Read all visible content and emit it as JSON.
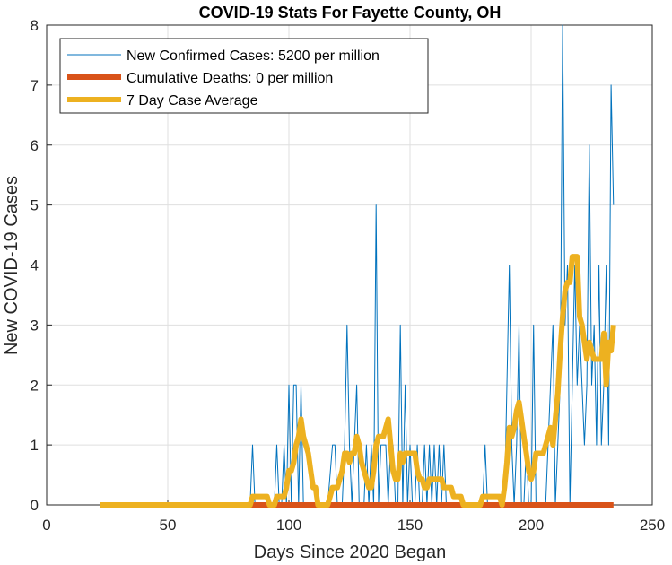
{
  "chart_data": {
    "type": "line",
    "title": "COVID-19 Stats For Fayette County, OH",
    "xlabel": "Days Since 2020 Began",
    "ylabel": "New COVID-19 Cases",
    "xlim": [
      0,
      250
    ],
    "ylim": [
      0,
      8
    ],
    "x_ticks": [
      "0",
      "50",
      "100",
      "150",
      "200",
      "250"
    ],
    "y_ticks": [
      "0",
      "1",
      "2",
      "3",
      "4",
      "5",
      "6",
      "7",
      "8"
    ],
    "grid": true,
    "legend_position": "top-left",
    "series": [
      {
        "name": "New Confirmed Cases: 5200 per million",
        "color": "#0072BD",
        "style": "thin",
        "points": [
          [
            22,
            0
          ],
          [
            84,
            0
          ],
          [
            85,
            1
          ],
          [
            86,
            0
          ],
          [
            94,
            0
          ],
          [
            95,
            1
          ],
          [
            96,
            0
          ],
          [
            97,
            0
          ],
          [
            98,
            1
          ],
          [
            99,
            0
          ],
          [
            100,
            2
          ],
          [
            101,
            0
          ],
          [
            102,
            2
          ],
          [
            103,
            2
          ],
          [
            104,
            0
          ],
          [
            105,
            2
          ],
          [
            106,
            0
          ],
          [
            115,
            0
          ],
          [
            116,
            0
          ],
          [
            118,
            1
          ],
          [
            119,
            1
          ],
          [
            120,
            0
          ],
          [
            122,
            0
          ],
          [
            123,
            1
          ],
          [
            124,
            3
          ],
          [
            125,
            1
          ],
          [
            126,
            0
          ],
          [
            127,
            1
          ],
          [
            128,
            2
          ],
          [
            129,
            0
          ],
          [
            131,
            0
          ],
          [
            132,
            1
          ],
          [
            133,
            0
          ],
          [
            134,
            1
          ],
          [
            135,
            0
          ],
          [
            136,
            5
          ],
          [
            137,
            0
          ],
          [
            138,
            1
          ],
          [
            139,
            1
          ],
          [
            140,
            1
          ],
          [
            141,
            0
          ],
          [
            142,
            1
          ],
          [
            143,
            1
          ],
          [
            144,
            0
          ],
          [
            145,
            0
          ],
          [
            146,
            3
          ],
          [
            147,
            0
          ],
          [
            148,
            2
          ],
          [
            149,
            0
          ],
          [
            150,
            1
          ],
          [
            151,
            0
          ],
          [
            152,
            0
          ],
          [
            153,
            1
          ],
          [
            154,
            0
          ],
          [
            155,
            0
          ],
          [
            156,
            1
          ],
          [
            157,
            0
          ],
          [
            158,
            1
          ],
          [
            159,
            0
          ],
          [
            160,
            1
          ],
          [
            161,
            0
          ],
          [
            162,
            1
          ],
          [
            163,
            0
          ],
          [
            164,
            1
          ],
          [
            165,
            0
          ],
          [
            180,
            0
          ],
          [
            181,
            1
          ],
          [
            182,
            0
          ],
          [
            189,
            0
          ],
          [
            190,
            2
          ],
          [
            191,
            4
          ],
          [
            192,
            1
          ],
          [
            193,
            0
          ],
          [
            194,
            1
          ],
          [
            195,
            3
          ],
          [
            196,
            0
          ],
          [
            197,
            0
          ],
          [
            198,
            1
          ],
          [
            199,
            0
          ],
          [
            200,
            0
          ],
          [
            201,
            3
          ],
          [
            202,
            0
          ],
          [
            206,
            0
          ],
          [
            207,
            1
          ],
          [
            208,
            2
          ],
          [
            209,
            3
          ],
          [
            210,
            0
          ],
          [
            211,
            1
          ],
          [
            212,
            2
          ],
          [
            213,
            8
          ],
          [
            214,
            3
          ],
          [
            215,
            4
          ],
          [
            216,
            0
          ],
          [
            217,
            2
          ],
          [
            218,
            4
          ],
          [
            219,
            2
          ],
          [
            220,
            3
          ],
          [
            221,
            2
          ],
          [
            222,
            1
          ],
          [
            223,
            2
          ],
          [
            224,
            6
          ],
          [
            225,
            2
          ],
          [
            226,
            3
          ],
          [
            227,
            1
          ],
          [
            228,
            4
          ],
          [
            229,
            1
          ],
          [
            230,
            2
          ],
          [
            231,
            4
          ],
          [
            232,
            1
          ],
          [
            233,
            7
          ],
          [
            234,
            5
          ]
        ]
      },
      {
        "name": "Cumulative Deaths: 0 per million",
        "color": "#D95319",
        "style": "thick",
        "points": [
          [
            22,
            0
          ],
          [
            234,
            0
          ]
        ]
      },
      {
        "name": "7 Day Case Average",
        "color": "#EDB120",
        "style": "thick",
        "points": [
          [
            22,
            0
          ],
          [
            84,
            0
          ],
          [
            85,
            0.14
          ],
          [
            91,
            0.14
          ],
          [
            92,
            0
          ],
          [
            94,
            0
          ],
          [
            95,
            0.14
          ],
          [
            98,
            0.14
          ],
          [
            99,
            0.29
          ],
          [
            100,
            0.57
          ],
          [
            101,
            0.57
          ],
          [
            102,
            0.71
          ],
          [
            103,
            1.0
          ],
          [
            104,
            1.14
          ],
          [
            105,
            1.43
          ],
          [
            106,
            1.14
          ],
          [
            107,
            1.0
          ],
          [
            108,
            0.86
          ],
          [
            109,
            0.57
          ],
          [
            110,
            0.29
          ],
          [
            111,
            0.29
          ],
          [
            112,
            0
          ],
          [
            116,
            0
          ],
          [
            117,
            0.14
          ],
          [
            118,
            0.29
          ],
          [
            119,
            0.29
          ],
          [
            120,
            0.29
          ],
          [
            121,
            0.43
          ],
          [
            122,
            0.57
          ],
          [
            123,
            0.86
          ],
          [
            124,
            0.86
          ],
          [
            125,
            0.71
          ],
          [
            126,
            0.86
          ],
          [
            127,
            0.86
          ],
          [
            128,
            1.14
          ],
          [
            129,
            1.0
          ],
          [
            130,
            0.71
          ],
          [
            131,
            0.57
          ],
          [
            132,
            0.43
          ],
          [
            133,
            0.29
          ],
          [
            134,
            0.29
          ],
          [
            135,
            0.57
          ],
          [
            136,
            1.0
          ],
          [
            137,
            1.14
          ],
          [
            138,
            1.14
          ],
          [
            139,
            1.14
          ],
          [
            140,
            1.29
          ],
          [
            141,
            1.43
          ],
          [
            142,
            1.0
          ],
          [
            143,
            0.57
          ],
          [
            144,
            0.43
          ],
          [
            145,
            0.43
          ],
          [
            146,
            0.86
          ],
          [
            147,
            0.71
          ],
          [
            148,
            0.86
          ],
          [
            149,
            0.86
          ],
          [
            150,
            0.86
          ],
          [
            151,
            0.86
          ],
          [
            152,
            0.86
          ],
          [
            153,
            0.57
          ],
          [
            154,
            0.43
          ],
          [
            155,
            0.43
          ],
          [
            156,
            0.29
          ],
          [
            157,
            0.29
          ],
          [
            158,
            0.43
          ],
          [
            159,
            0.43
          ],
          [
            160,
            0.43
          ],
          [
            161,
            0.43
          ],
          [
            162,
            0.43
          ],
          [
            163,
            0.43
          ],
          [
            164,
            0.29
          ],
          [
            165,
            0.29
          ],
          [
            166,
            0.29
          ],
          [
            167,
            0.29
          ],
          [
            168,
            0.14
          ],
          [
            170,
            0.14
          ],
          [
            171,
            0.14
          ],
          [
            172,
            0
          ],
          [
            179,
            0
          ],
          [
            180,
            0.14
          ],
          [
            183,
            0.14
          ],
          [
            187,
            0.14
          ],
          [
            188,
            0
          ],
          [
            189,
            0.29
          ],
          [
            190,
            0.71
          ],
          [
            191,
            1.29
          ],
          [
            192,
            1.14
          ],
          [
            193,
            1.29
          ],
          [
            194,
            1.57
          ],
          [
            195,
            1.71
          ],
          [
            196,
            1.43
          ],
          [
            197,
            1.14
          ],
          [
            198,
            0.86
          ],
          [
            199,
            0.57
          ],
          [
            200,
            0.43
          ],
          [
            201,
            0.57
          ],
          [
            202,
            0.86
          ],
          [
            203,
            0.86
          ],
          [
            204,
            0.86
          ],
          [
            205,
            0.86
          ],
          [
            206,
            1.0
          ],
          [
            207,
            1.14
          ],
          [
            208,
            1.29
          ],
          [
            209,
            1.0
          ],
          [
            210,
            1.43
          ],
          [
            211,
            1.86
          ],
          [
            212,
            2.57
          ],
          [
            213,
            3.14
          ],
          [
            214,
            3.57
          ],
          [
            215,
            3.71
          ],
          [
            216,
            3.71
          ],
          [
            217,
            4.14
          ],
          [
            218,
            4.14
          ],
          [
            219,
            4.14
          ],
          [
            220,
            3.14
          ],
          [
            221,
            3.0
          ],
          [
            222,
            2.71
          ],
          [
            223,
            2.43
          ],
          [
            224,
            2.71
          ],
          [
            225,
            2.57
          ],
          [
            226,
            2.43
          ],
          [
            227,
            2.43
          ],
          [
            228,
            2.43
          ],
          [
            229,
            2.43
          ],
          [
            230,
            2.86
          ],
          [
            231,
            2.0
          ],
          [
            232,
            2.71
          ],
          [
            233,
            2.57
          ],
          [
            234,
            3.0
          ]
        ]
      }
    ]
  }
}
